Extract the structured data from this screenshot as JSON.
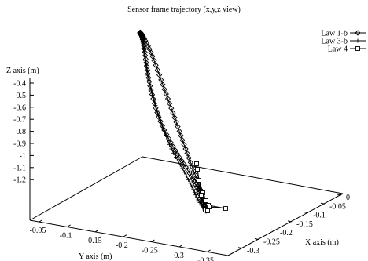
{
  "chart_data": {
    "type": "line",
    "title": "Sensor frame trajectory (x,y,z view)",
    "zlabel": "Z axis (m)",
    "ylabel": "Y axis (m)",
    "xlabel": "X axis (m)",
    "grid": false,
    "legend_position": "top-right",
    "z_ticks": [
      "-0.4",
      "-0.5",
      "-0.6",
      "-0.7",
      "-0.8",
      "-0.9",
      "-1",
      "-1.1",
      "-1.2"
    ],
    "y_ticks": [
      "-0.05",
      "-0.1",
      "-0.15",
      "-0.2",
      "-0.25",
      "-0.3",
      "-0.35"
    ],
    "x_ticks": [
      "0",
      "-0.05",
      "-0.1",
      "-0.15",
      "-0.2",
      "-0.25",
      "-0.3"
    ],
    "series": [
      {
        "name": "Law 1-b",
        "marker": "diamond",
        "color": "#000000"
      },
      {
        "name": "Law 3-b",
        "marker": "plus",
        "color": "#000000"
      },
      {
        "name": "Law 4",
        "marker": "square",
        "color": "#000000"
      }
    ]
  }
}
